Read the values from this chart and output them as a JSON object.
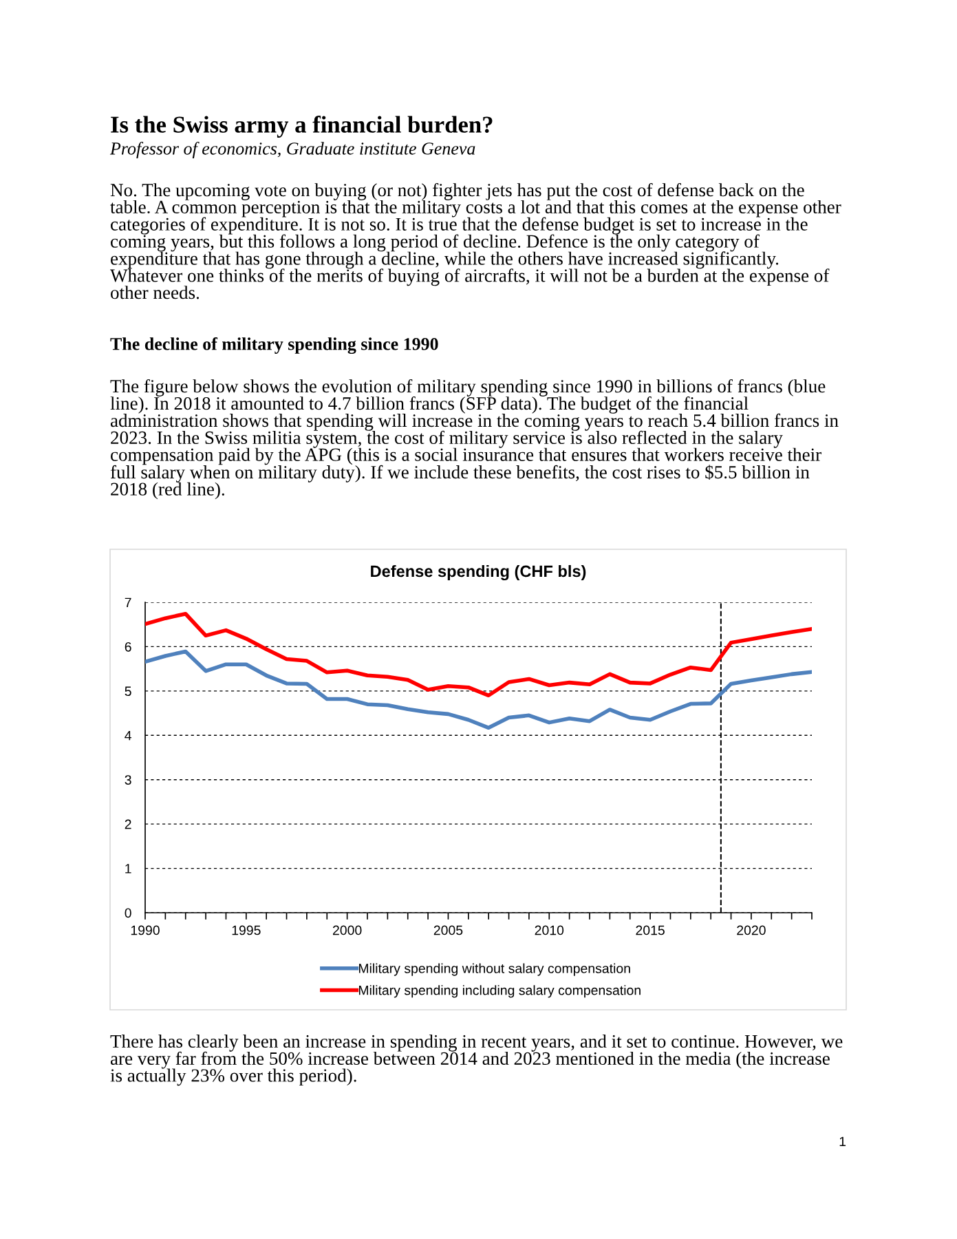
{
  "chart_data": {
    "type": "line",
    "title": "Defense spending (CHF bls)",
    "annotations": [
      "Is the Swiss army a financial burden?",
      "Professor of economics, Graduate institute Geneva",
      "No. The upcoming vote on buying (or not) fighter jets has put the cost of defense back on the table. A common perception is that the military costs a lot and that this comes at the expense other categories of expenditure. It is not so. It is true that the defense budget is set to increase in the coming years, but this follows a long period of decline. Defence is the only category of expenditure that has gone through a decline, while the others have increased significantly. Whatever one thinks of the merits of buying of aircrafts, it will not be a burden at the expense of other needs.",
      "The decline of military spending since 1990",
      "The figure below shows the evolution of military spending since 1990 in billions of francs (blue line). In 2018 it amounted to 4.7 billion francs (SFP data). The budget of the financial administration shows that spending will increase in the coming years to reach 5.4 billion francs in 2023. In the Swiss militia system, the cost of military service is also reflected in the salary compensation paid by the APG (this is a social insurance that ensures that workers receive their full salary when on military duty). If we include these benefits, the cost rises to $5.5 billion in 2018 (red line).",
      "There has clearly been an increase in spending in recent years, and it set to continue. However, we are very far from the 50% increase between 2014 and 2023 mentioned in the media (the increase is actually 23% over this period).",
      "1"
    ],
    "x": [
      1990,
      1991,
      1992,
      1993,
      1994,
      1995,
      1996,
      1997,
      1998,
      1999,
      2000,
      2001,
      2002,
      2003,
      2004,
      2005,
      2006,
      2007,
      2008,
      2009,
      2010,
      2011,
      2012,
      2013,
      2014,
      2015,
      2016,
      2017,
      2018,
      2019,
      2020,
      2021,
      2022,
      2023
    ],
    "series": [
      {
        "name": "Military spending without salary compensation",
        "color": "#4f81bd",
        "values": [
          5.66,
          5.79,
          5.89,
          5.45,
          5.6,
          5.6,
          5.35,
          5.17,
          5.16,
          4.82,
          4.82,
          4.7,
          4.68,
          4.59,
          4.52,
          4.48,
          4.35,
          4.17,
          4.4,
          4.45,
          4.29,
          4.38,
          4.32,
          4.58,
          4.4,
          4.35,
          4.54,
          4.71,
          4.72,
          5.16,
          5.24,
          5.31,
          5.38,
          5.43
        ]
      },
      {
        "name": "Military spending including salary compensation",
        "color": "#ff0000",
        "values": [
          6.51,
          6.64,
          6.74,
          6.25,
          6.37,
          6.18,
          5.94,
          5.72,
          5.68,
          5.42,
          5.46,
          5.35,
          5.32,
          5.25,
          5.03,
          5.11,
          5.08,
          4.9,
          5.2,
          5.27,
          5.13,
          5.19,
          5.15,
          5.38,
          5.19,
          5.17,
          5.37,
          5.53,
          5.47,
          6.09,
          6.17,
          6.25,
          6.33,
          6.4
        ]
      }
    ],
    "xlim": [
      1990,
      2023
    ],
    "xticks": [
      1990,
      {
        "value": 1991,
        "label": null
      },
      {
        "value": 1992,
        "label": null
      },
      {
        "value": 1993,
        "label": null
      },
      {
        "value": 1994,
        "label": null
      },
      1995,
      {
        "value": 1996,
        "label": null
      },
      {
        "value": 1997,
        "label": null
      },
      {
        "value": 1998,
        "label": null
      },
      {
        "value": 1999,
        "label": null
      },
      2000,
      {
        "value": 2001,
        "label": null
      },
      {
        "value": 2002,
        "label": null
      },
      {
        "value": 2003,
        "label": null
      },
      {
        "value": 2004,
        "label": null
      },
      2005,
      {
        "value": 2006,
        "label": null
      },
      {
        "value": 2007,
        "label": null
      },
      {
        "value": 2008,
        "label": null
      },
      {
        "value": 2009,
        "label": null
      },
      2010,
      {
        "value": 2011,
        "label": null
      },
      {
        "value": 2012,
        "label": null
      },
      {
        "value": 2013,
        "label": null
      },
      {
        "value": 2014,
        "label": null
      },
      2015,
      {
        "value": 2016,
        "label": null
      },
      {
        "value": 2017,
        "label": null
      },
      {
        "value": 2018,
        "label": null
      },
      {
        "value": 2019,
        "label": null
      },
      2020,
      {
        "value": 2021,
        "label": null
      },
      {
        "value": 2022,
        "label": null
      },
      {
        "value": 2023,
        "label": null
      }
    ],
    "ylim": [
      0,
      7
    ],
    "yticks": [
      0,
      1,
      2,
      3,
      4,
      5,
      6,
      7
    ],
    "ref_lines": [
      {
        "axis": "x",
        "value": 2018.5,
        "color": "#000000",
        "line_style": "dashed"
      }
    ],
    "grid": "y",
    "legend": "bottom",
    "marker": "none",
    "line_style": "solid"
  }
}
